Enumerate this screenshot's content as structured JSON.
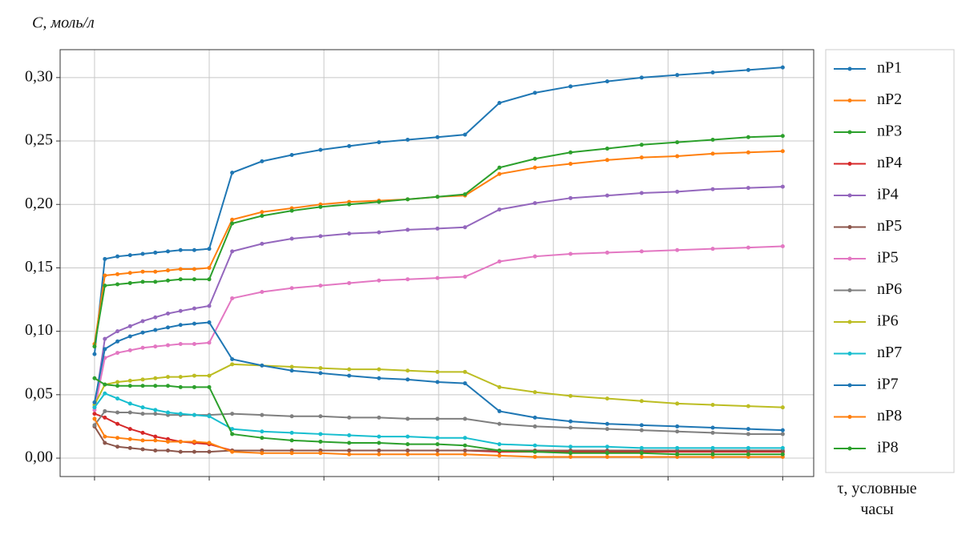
{
  "chart_data": {
    "type": "line",
    "ylabel": "C, моль/л",
    "xlabel": "τ, условные часы",
    "x": [
      0,
      0.09,
      0.2,
      0.31,
      0.42,
      0.53,
      0.64,
      0.75,
      0.87,
      1.0,
      1.2,
      1.46,
      1.72,
      1.97,
      2.22,
      2.48,
      2.73,
      2.99,
      3.23,
      3.53,
      3.84,
      4.15,
      4.47,
      4.77,
      5.08,
      5.39,
      5.7,
      6.0
    ],
    "xlim": [
      -0.3,
      6.27
    ],
    "xticks": [
      0,
      1,
      2,
      3,
      4,
      5,
      6
    ],
    "ylim": [
      -0.0145,
      0.322
    ],
    "yticks": [
      {
        "value": 0,
        "label": "0,00"
      },
      {
        "value": 0.05,
        "label": "0,05"
      },
      {
        "value": 0.1,
        "label": "0,10"
      },
      {
        "value": 0.15,
        "label": "0,15"
      },
      {
        "value": 0.2,
        "label": "0,20"
      },
      {
        "value": 0.25,
        "label": "0,25"
      },
      {
        "value": 0.3,
        "label": "0,30"
      }
    ],
    "grid": true,
    "legend": "outside-right",
    "series": [
      {
        "name": "nP1",
        "color": "#1f77b4",
        "values": [
          0.082,
          0.157,
          0.159,
          0.16,
          0.161,
          0.162,
          0.163,
          0.164,
          0.164,
          0.165,
          0.225,
          0.234,
          0.239,
          0.243,
          0.246,
          0.249,
          0.251,
          0.253,
          0.255,
          0.28,
          0.288,
          0.293,
          0.297,
          0.3,
          0.302,
          0.304,
          0.306,
          0.308
        ]
      },
      {
        "name": "nP2",
        "color": "#ff7f0e",
        "values": [
          0.09,
          0.144,
          0.145,
          0.146,
          0.147,
          0.147,
          0.148,
          0.149,
          0.149,
          0.15,
          0.188,
          0.194,
          0.197,
          0.2,
          0.202,
          0.203,
          0.204,
          0.206,
          0.207,
          0.224,
          0.229,
          0.232,
          0.235,
          0.237,
          0.238,
          0.24,
          0.241,
          0.242
        ]
      },
      {
        "name": "nP3",
        "color": "#2ca02c",
        "values": [
          0.088,
          0.136,
          0.137,
          0.138,
          0.139,
          0.139,
          0.14,
          0.141,
          0.141,
          0.141,
          0.185,
          0.191,
          0.195,
          0.198,
          0.2,
          0.202,
          0.204,
          0.206,
          0.208,
          0.229,
          0.236,
          0.241,
          0.244,
          0.247,
          0.249,
          0.251,
          0.253,
          0.254
        ]
      },
      {
        "name": "nP4",
        "color": "#d62728",
        "values": [
          0.035,
          0.032,
          0.027,
          0.023,
          0.02,
          0.017,
          0.015,
          0.013,
          0.012,
          0.011,
          0.006,
          0.006,
          0.006,
          0.006,
          0.006,
          0.006,
          0.006,
          0.006,
          0.006,
          0.005,
          0.005,
          0.005,
          0.005,
          0.005,
          0.005,
          0.005,
          0.005,
          0.005
        ]
      },
      {
        "name": "iP4",
        "color": "#9467bd",
        "values": [
          0.04,
          0.094,
          0.1,
          0.104,
          0.108,
          0.111,
          0.114,
          0.116,
          0.118,
          0.12,
          0.163,
          0.169,
          0.173,
          0.175,
          0.177,
          0.178,
          0.18,
          0.181,
          0.182,
          0.196,
          0.201,
          0.205,
          0.207,
          0.209,
          0.21,
          0.212,
          0.213,
          0.214
        ]
      },
      {
        "name": "nP5",
        "color": "#8c564b",
        "values": [
          0.025,
          0.012,
          0.009,
          0.008,
          0.007,
          0.006,
          0.006,
          0.005,
          0.005,
          0.005,
          0.006,
          0.006,
          0.006,
          0.006,
          0.006,
          0.006,
          0.006,
          0.006,
          0.006,
          0.006,
          0.006,
          0.006,
          0.006,
          0.006,
          0.006,
          0.006,
          0.006,
          0.006
        ]
      },
      {
        "name": "iP5",
        "color": "#e377c2",
        "values": [
          0.038,
          0.079,
          0.083,
          0.085,
          0.087,
          0.088,
          0.089,
          0.09,
          0.09,
          0.091,
          0.126,
          0.131,
          0.134,
          0.136,
          0.138,
          0.14,
          0.141,
          0.142,
          0.143,
          0.155,
          0.159,
          0.161,
          0.162,
          0.163,
          0.164,
          0.165,
          0.166,
          0.167
        ]
      },
      {
        "name": "nP6",
        "color": "#7f7f7f",
        "values": [
          0.026,
          0.037,
          0.036,
          0.036,
          0.035,
          0.035,
          0.034,
          0.034,
          0.034,
          0.034,
          0.035,
          0.034,
          0.033,
          0.033,
          0.032,
          0.032,
          0.031,
          0.031,
          0.031,
          0.027,
          0.025,
          0.024,
          0.023,
          0.022,
          0.021,
          0.02,
          0.019,
          0.019
        ]
      },
      {
        "name": "iP6",
        "color": "#bcbd22",
        "values": [
          0.042,
          0.058,
          0.06,
          0.061,
          0.062,
          0.063,
          0.064,
          0.064,
          0.065,
          0.065,
          0.074,
          0.073,
          0.072,
          0.071,
          0.07,
          0.07,
          0.069,
          0.068,
          0.068,
          0.056,
          0.052,
          0.049,
          0.047,
          0.045,
          0.043,
          0.042,
          0.041,
          0.04
        ]
      },
      {
        "name": "nP7",
        "color": "#17becf",
        "values": [
          0.04,
          0.051,
          0.047,
          0.043,
          0.04,
          0.038,
          0.036,
          0.035,
          0.034,
          0.033,
          0.023,
          0.021,
          0.02,
          0.019,
          0.018,
          0.017,
          0.017,
          0.016,
          0.016,
          0.011,
          0.01,
          0.009,
          0.009,
          0.008,
          0.008,
          0.008,
          0.008,
          0.008
        ]
      },
      {
        "name": "iP7",
        "color": "#1f77b4",
        "values": [
          0.044,
          0.086,
          0.092,
          0.096,
          0.099,
          0.101,
          0.103,
          0.105,
          0.106,
          0.107,
          0.078,
          0.073,
          0.069,
          0.067,
          0.065,
          0.063,
          0.062,
          0.06,
          0.059,
          0.037,
          0.032,
          0.029,
          0.027,
          0.026,
          0.025,
          0.024,
          0.023,
          0.022
        ]
      },
      {
        "name": "nP8",
        "color": "#ff7f0e",
        "values": [
          0.031,
          0.017,
          0.016,
          0.015,
          0.014,
          0.014,
          0.013,
          0.013,
          0.013,
          0.012,
          0.005,
          0.004,
          0.004,
          0.004,
          0.003,
          0.003,
          0.003,
          0.003,
          0.003,
          0.002,
          0.001,
          0.001,
          0.001,
          0.001,
          0.001,
          0.001,
          0.001,
          0.001
        ]
      },
      {
        "name": "iP8",
        "color": "#2ca02c",
        "values": [
          0.063,
          0.058,
          0.057,
          0.057,
          0.057,
          0.057,
          0.057,
          0.056,
          0.056,
          0.056,
          0.019,
          0.016,
          0.014,
          0.013,
          0.012,
          0.012,
          0.011,
          0.011,
          0.01,
          0.006,
          0.005,
          0.004,
          0.004,
          0.004,
          0.003,
          0.003,
          0.003,
          0.003
        ]
      }
    ]
  }
}
